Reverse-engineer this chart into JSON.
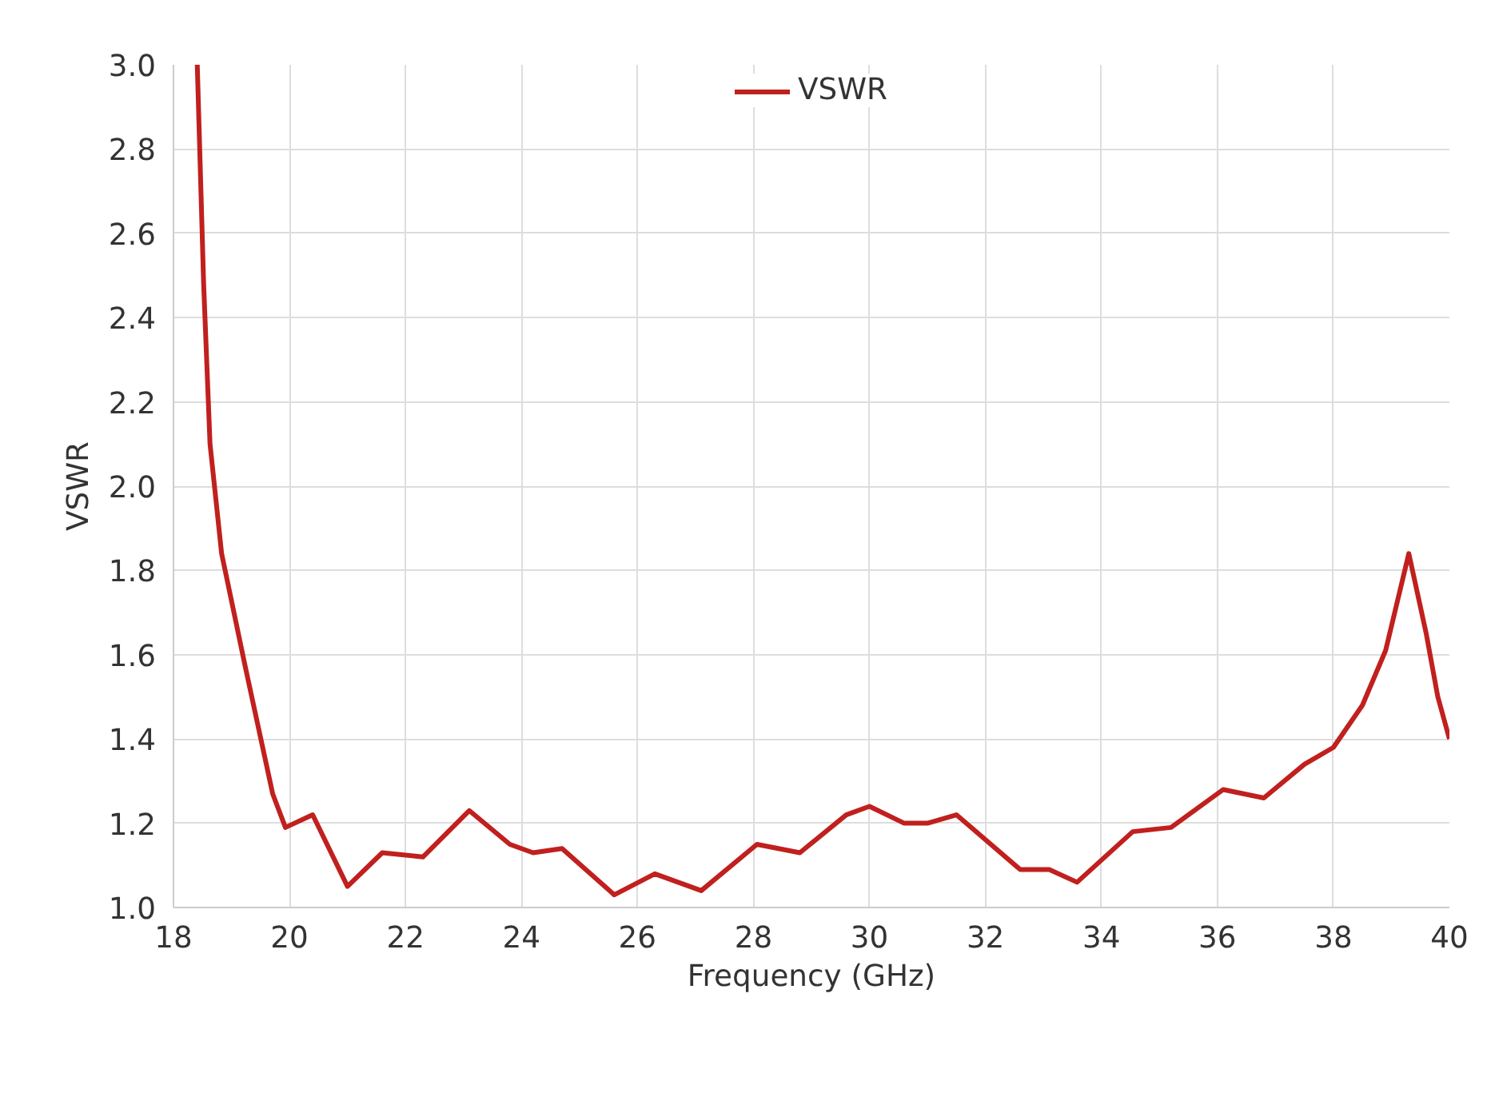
{
  "chart_data": {
    "type": "line",
    "xlabel": "Frequency (GHz)",
    "ylabel": "VSWR",
    "xlim": [
      18,
      40
    ],
    "xticks": [
      18,
      20,
      22,
      24,
      26,
      28,
      30,
      32,
      34,
      36,
      38,
      40
    ],
    "ylim": [
      1.0,
      3.0
    ],
    "yticks": [
      {
        "value": 1.0,
        "label": "1.0"
      },
      {
        "value": 1.2,
        "label": "1.2"
      },
      {
        "value": 1.4,
        "label": "1.4"
      },
      {
        "value": 1.6,
        "label": "1.6"
      },
      {
        "value": 1.8,
        "label": "1.8"
      },
      {
        "value": 2.0,
        "label": "2.0"
      },
      {
        "value": 2.2,
        "label": "2.2"
      },
      {
        "value": 2.4,
        "label": "2.4"
      },
      {
        "value": 2.6,
        "label": "2.6"
      },
      {
        "value": 2.8,
        "label": "2.8"
      },
      {
        "value": 3.0,
        "label": "3.0"
      }
    ],
    "grid": true,
    "legend": "top",
    "marker": "none",
    "line_style": "solid",
    "series": [
      {
        "name": "VSWR",
        "color": "#c0201e",
        "x": [
          18.41,
          18.52,
          18.63,
          18.83,
          19.24,
          19.71,
          19.93,
          20.4,
          21.0,
          21.6,
          22.3,
          23.1,
          23.8,
          24.2,
          24.7,
          25.6,
          26.3,
          27.1,
          28.06,
          28.8,
          29.6,
          30.0,
          30.6,
          31.0,
          31.5,
          32.6,
          33.1,
          33.58,
          34.54,
          35.2,
          36.1,
          36.8,
          37.5,
          38.0,
          38.5,
          38.9,
          39.3,
          39.6,
          39.8,
          40.0
        ],
        "values": [
          3.0,
          2.48,
          2.1,
          1.84,
          1.57,
          1.27,
          1.19,
          1.22,
          1.05,
          1.13,
          1.12,
          1.23,
          1.15,
          1.13,
          1.14,
          1.03,
          1.08,
          1.04,
          1.15,
          1.13,
          1.22,
          1.24,
          1.2,
          1.2,
          1.22,
          1.09,
          1.09,
          1.06,
          1.18,
          1.19,
          1.28,
          1.26,
          1.34,
          1.38,
          1.48,
          1.61,
          1.84,
          1.65,
          1.5,
          1.4
        ]
      }
    ]
  }
}
